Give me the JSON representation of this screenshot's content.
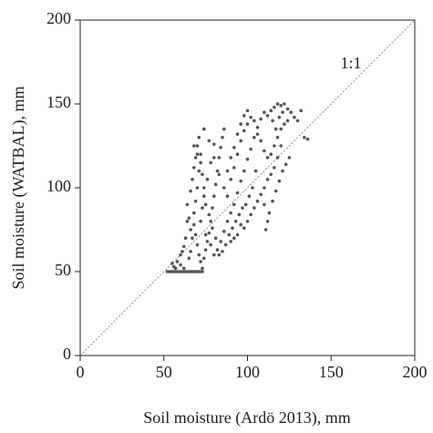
{
  "chart_data": {
    "type": "scatter",
    "xlabel": "Soil moisture (Ardö 2013), mm",
    "ylabel": "Soil moisture (WATBAL), mm",
    "annotation": "1:1",
    "xlim": [
      0,
      200
    ],
    "ylim": [
      0,
      200
    ],
    "xticks": [
      0,
      50,
      100,
      150,
      200
    ],
    "yticks": [
      0,
      50,
      100,
      150,
      200
    ],
    "grid": false,
    "reference_line": "1:1",
    "series": [
      {
        "color": "#555555",
        "x": [
          52,
          53,
          54,
          55,
          56,
          57,
          58,
          59,
          60,
          61,
          62,
          63,
          64,
          65,
          66,
          67,
          68,
          69,
          70,
          71,
          72,
          73,
          55,
          56,
          57,
          58,
          60,
          62,
          65,
          66,
          67,
          66,
          65,
          64,
          66,
          67,
          68,
          69,
          70,
          72,
          71,
          70,
          69,
          68,
          68,
          69,
          70,
          71,
          72,
          73,
          74,
          75,
          76,
          77,
          78,
          79,
          80,
          81,
          82,
          83,
          84,
          85,
          86,
          80,
          78,
          76,
          74,
          73,
          72,
          75,
          78,
          80,
          82,
          84,
          86,
          88,
          90,
          92,
          94,
          96,
          98,
          100,
          102,
          104,
          106,
          108,
          110,
          112,
          114,
          116,
          118,
          120,
          122,
          124,
          126,
          128,
          130,
          132,
          134,
          136,
          120,
          118,
          116,
          114,
          112,
          110,
          108,
          106,
          104,
          102,
          100,
          98,
          96,
          94,
          92,
          90,
          88,
          90,
          92,
          94,
          96,
          98,
          100,
          102,
          104,
          106,
          108,
          110,
          112,
          114,
          116,
          118,
          120,
          122,
          124,
          110,
          112,
          111,
          113,
          115,
          117,
          119,
          121,
          123,
          125,
          115,
          117,
          119,
          121,
          105,
          103,
          101,
          99,
          97,
          95,
          93,
          91,
          89,
          87,
          85,
          83,
          81,
          79,
          77,
          75,
          74,
          73,
          72,
          70,
          68,
          71,
          74,
          77,
          80,
          83,
          86,
          88,
          90,
          92,
          94,
          96,
          98,
          100,
          60,
          62,
          63,
          61,
          64
        ],
        "values": [
          50,
          50,
          50,
          50,
          50,
          50,
          50,
          50,
          50,
          50,
          50,
          50,
          50,
          50,
          50,
          50,
          50,
          50,
          50,
          50,
          50,
          50,
          55,
          53,
          52,
          56,
          54,
          52,
          58,
          62,
          70,
          75,
          82,
          90,
          98,
          105,
          112,
          118,
          125,
          120,
          110,
          100,
          92,
          85,
          78,
          72,
          66,
          60,
          56,
          52,
          58,
          63,
          68,
          73,
          80,
          88,
          95,
          102,
          110,
          118,
          124,
          130,
          135,
          126,
          115,
          105,
          95,
          88,
          80,
          72,
          66,
          60,
          63,
          68,
          74,
          80,
          85,
          90,
          97,
          104,
          110,
          117,
          123,
          130,
          136,
          141,
          145,
          143,
          146,
          148,
          150,
          149,
          150,
          147,
          145,
          142,
          140,
          146,
          130,
          129,
          125,
          118,
          112,
          108,
          105,
          100,
          96,
          92,
          88,
          84,
          80,
          76,
          78,
          72,
          70,
          68,
          95,
          105,
          112,
          120,
          128,
          134,
          138,
          142,
          140,
          132,
          128,
          122,
          118,
          120,
          125,
          130,
          135,
          138,
          140,
          90,
          80,
          75,
          85,
          92,
          98,
          104,
          110,
          114,
          118,
          140,
          135,
          142,
          145,
          110,
          100,
          95,
          90,
          88,
          84,
          80,
          76,
          72,
          66,
          62,
          60,
          70,
          76,
          84,
          90,
          100,
          108,
          115,
          120,
          125,
          130,
          135,
          128,
          118,
          108,
          100,
          110,
          118,
          124,
          132,
          138,
          143,
          146,
          60,
          65,
          70,
          62,
          80
        ]
      }
    ]
  }
}
